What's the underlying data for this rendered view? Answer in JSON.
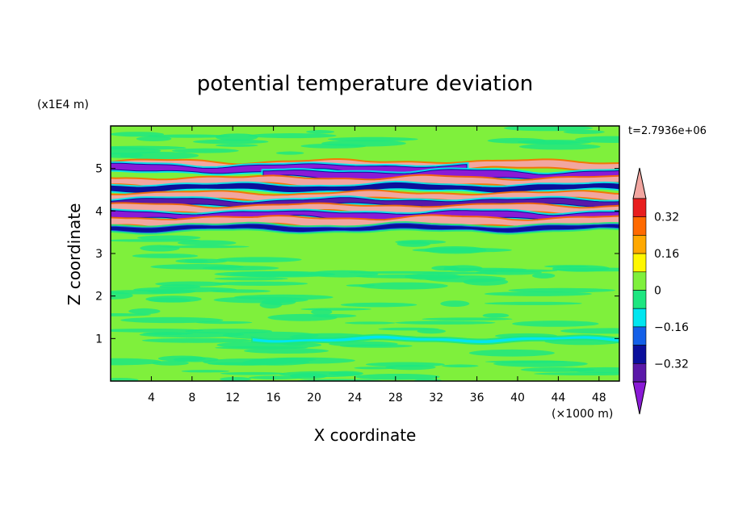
{
  "chart_data": {
    "type": "heatmap",
    "title": "potential temperature deviation",
    "time_label": "t=2.7936e+06",
    "xlabel": "X coordinate",
    "ylabel": "Z coordinate",
    "x_unit": "(×1000 m)",
    "y_unit": "(x1E4 m)",
    "xlim": [
      0,
      50
    ],
    "ylim": [
      0,
      6
    ],
    "x_ticks": [
      4,
      8,
      12,
      16,
      20,
      24,
      28,
      32,
      36,
      40,
      44,
      48
    ],
    "y_ticks": [
      1,
      2,
      3,
      4,
      5
    ],
    "colorbar": {
      "levels": [
        -0.48,
        -0.4,
        -0.32,
        -0.24,
        -0.16,
        -0.08,
        0,
        0.08,
        0.16,
        0.24,
        0.32,
        0.4,
        0.48
      ],
      "tick_labels": [
        "0.32",
        "0.16",
        "0",
        "−0.16",
        "−0.32"
      ],
      "tick_values": [
        0.32,
        0.16,
        0,
        -0.16,
        -0.32
      ],
      "colors": [
        "#8a1ad6",
        "#5a18a8",
        "#0b0f9c",
        "#1460e8",
        "#00e6f0",
        "#1ee680",
        "#7ff03c",
        "#fff700",
        "#ffa800",
        "#ff6a00",
        "#e81e1e",
        "#f2a6a0"
      ],
      "extend": "both"
    },
    "bands": [
      {
        "z": 5.08,
        "x_start": 0,
        "x_end": 50,
        "value": 0.5,
        "thickness": 0.07
      },
      {
        "z": 5.0,
        "x_start": 0,
        "x_end": 35,
        "value": -0.5,
        "thickness": 0.08
      },
      {
        "z": 4.85,
        "x_start": 15,
        "x_end": 50,
        "value": -0.5,
        "thickness": 0.09
      },
      {
        "z": 4.7,
        "x_start": 0,
        "x_end": 50,
        "value": 0.45,
        "thickness": 0.07
      },
      {
        "z": 4.55,
        "x_start": 0,
        "x_end": 50,
        "value": -0.4,
        "thickness": 0.06
      },
      {
        "z": 4.35,
        "x_start": 0,
        "x_end": 50,
        "value": 0.4,
        "thickness": 0.06
      },
      {
        "z": 4.2,
        "x_start": 0,
        "x_end": 50,
        "value": -0.45,
        "thickness": 0.07
      },
      {
        "z": 4.05,
        "x_start": 0,
        "x_end": 50,
        "value": 0.45,
        "thickness": 0.07
      },
      {
        "z": 3.9,
        "x_start": 0,
        "x_end": 50,
        "value": -0.5,
        "thickness": 0.08
      },
      {
        "z": 3.75,
        "x_start": 0,
        "x_end": 50,
        "value": 0.45,
        "thickness": 0.08
      },
      {
        "z": 3.6,
        "x_start": 0,
        "x_end": 50,
        "value": -0.35,
        "thickness": 0.06
      },
      {
        "z": 0.98,
        "x_start": 14,
        "x_end": 50,
        "value": -0.2,
        "thickness": 0.025
      }
    ]
  }
}
